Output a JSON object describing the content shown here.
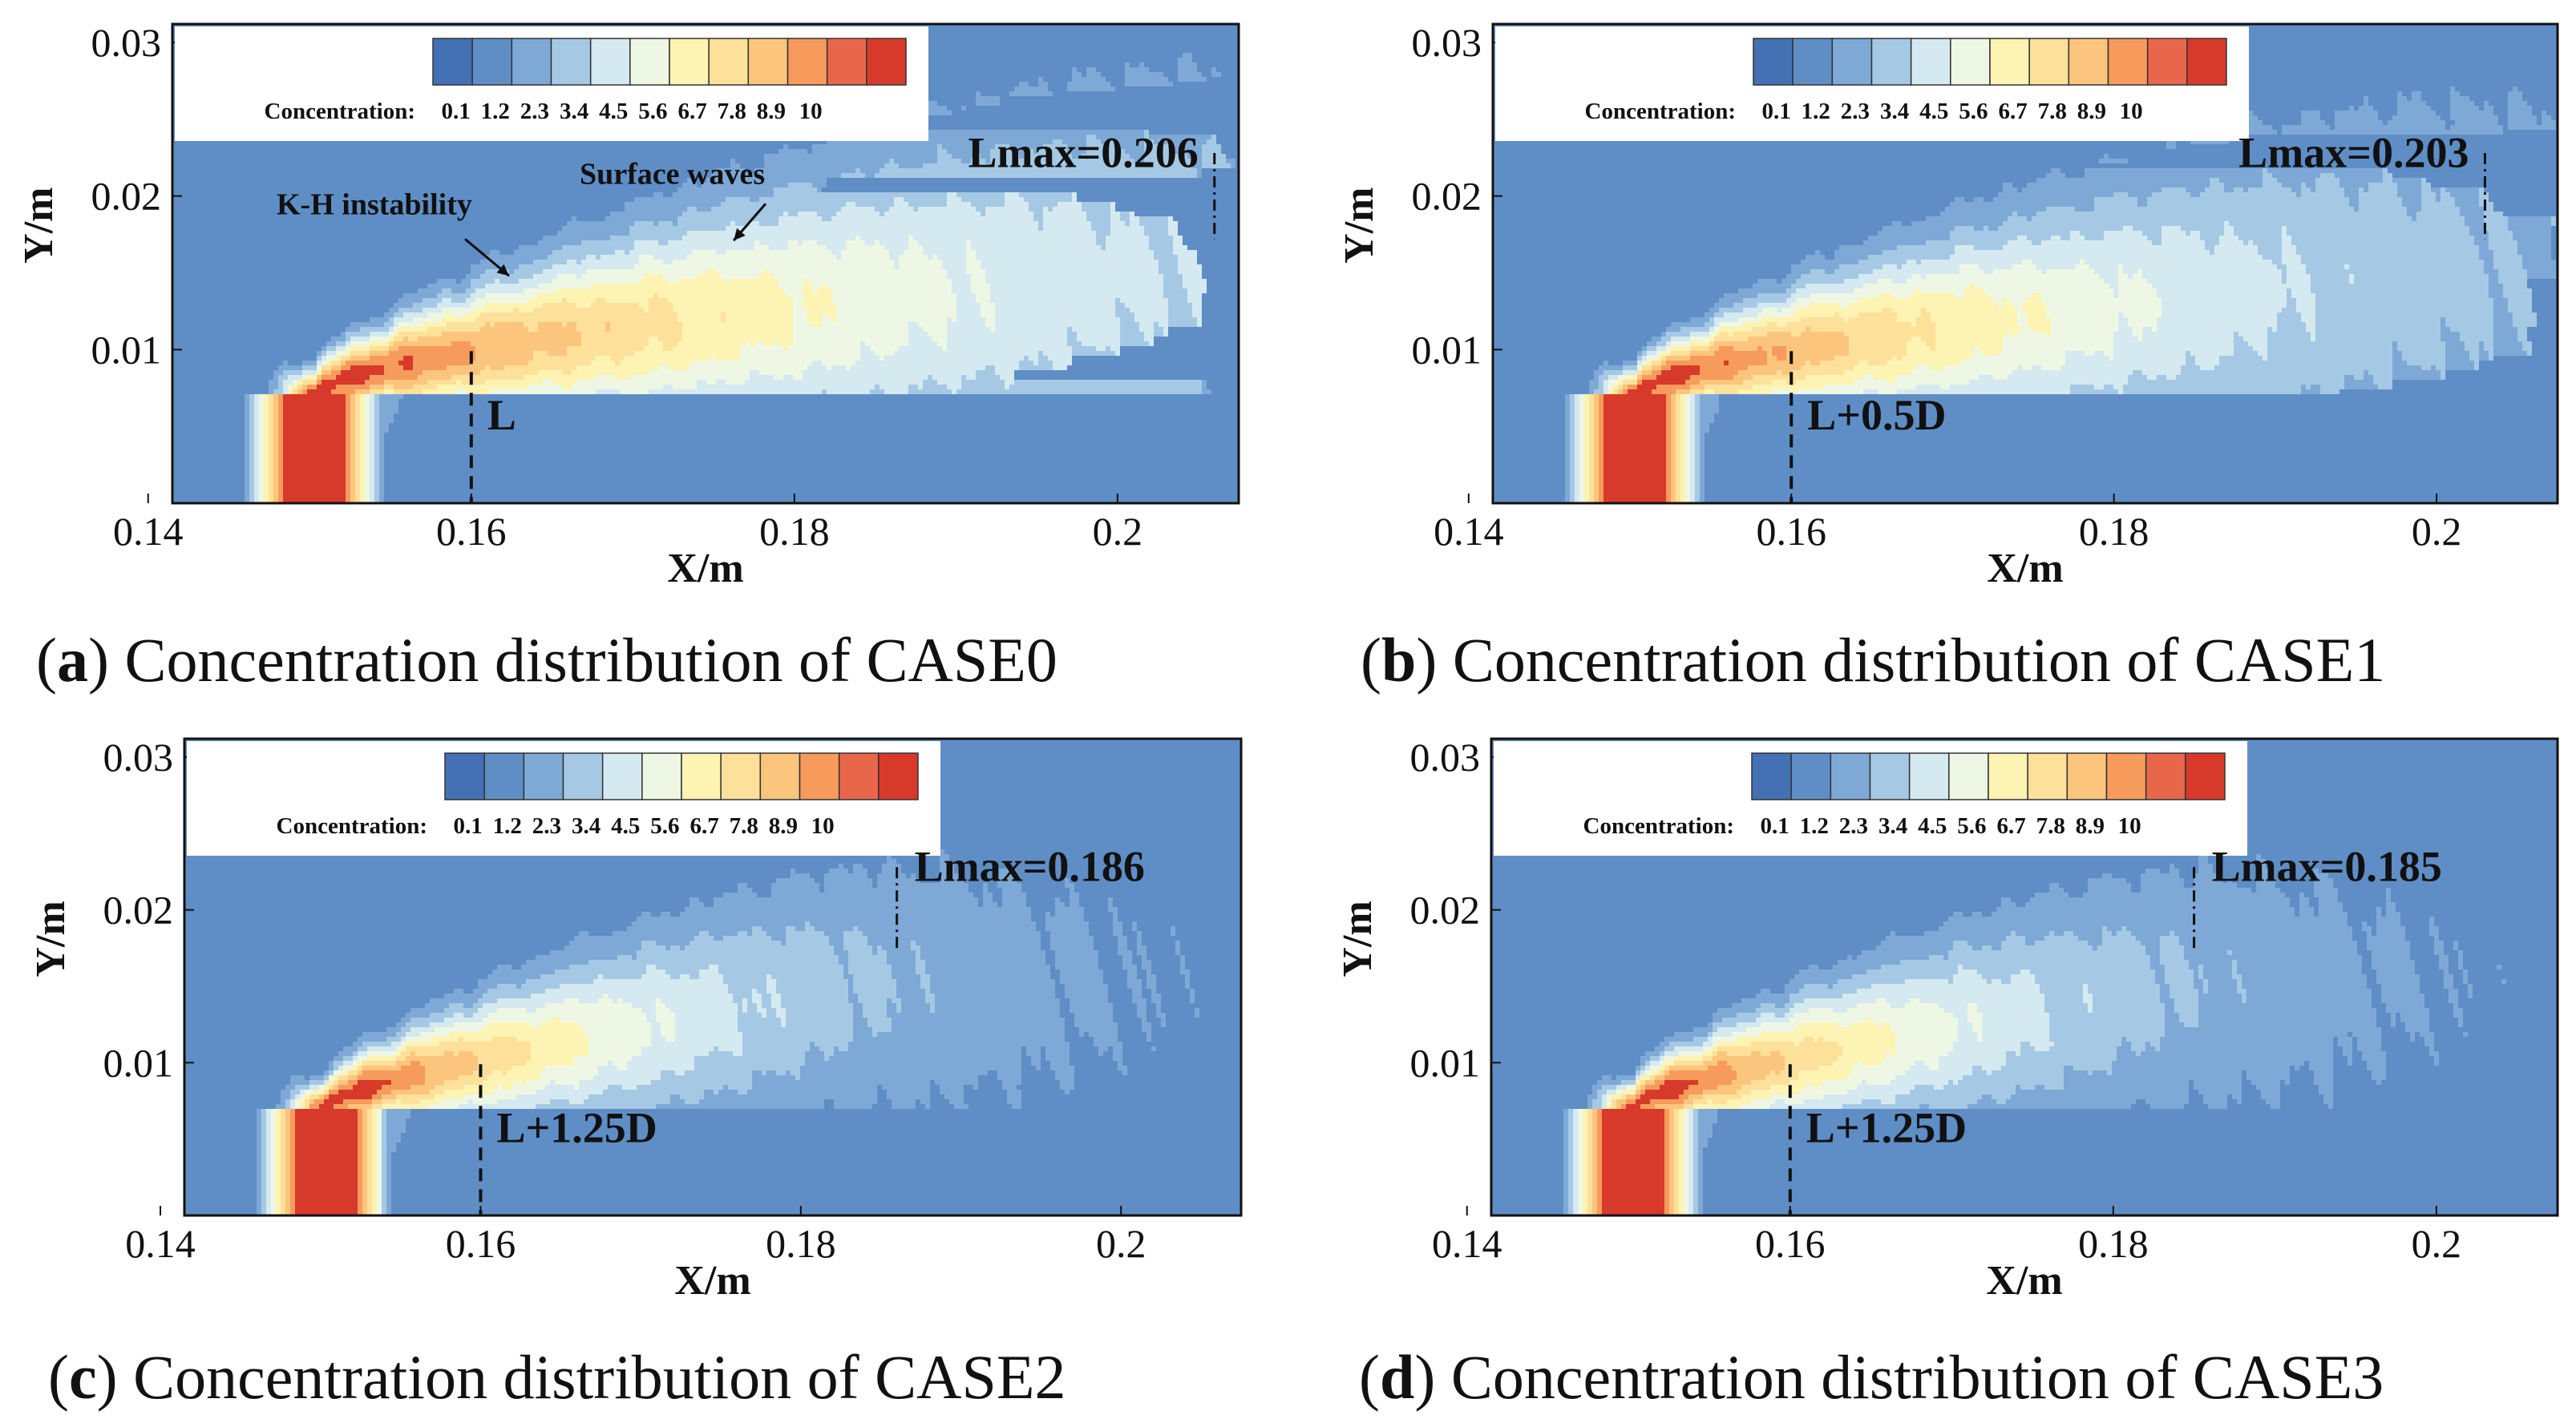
{
  "colors": {
    "levels": [
      "#4371b4",
      "#5f8ec6",
      "#7ea9d6",
      "#a5c9e4",
      "#d5e9f0",
      "#eef7e4",
      "#fdf3b2",
      "#fde09a",
      "#fcc57d",
      "#f79b5c",
      "#e8674a",
      "#d73a2b"
    ],
    "frame": "#111111"
  },
  "chart_data": [
    {
      "type": "heatmap",
      "panel": "a",
      "caption_label": "a",
      "caption_text": "Concentration distribution of CASE0",
      "xlabel": "X/m",
      "ylabel": "Y/m",
      "xlim": [
        0.1415,
        0.2075
      ],
      "ylim": [
        0.0,
        0.0312
      ],
      "xticks": [
        "0.14",
        "0.16",
        "0.18",
        "0.2"
      ],
      "yticks": [
        "0.01",
        "0.02",
        "0.03"
      ],
      "colorbar_title": "Concentration:",
      "colorbar_levels": [
        "0.1",
        "1.2",
        "2.3",
        "3.4",
        "4.5",
        "5.6",
        "6.7",
        "7.8",
        "8.9",
        "10"
      ],
      "lmax_value": 0.206,
      "lmax_label": "Lmax=0.206",
      "l_position": 0.16,
      "l_label": "L",
      "decay": 1.0,
      "rise": 0.0,
      "dip": 0.0,
      "extra_labels": [
        "K-H instability",
        "Surface waves"
      ]
    },
    {
      "type": "heatmap",
      "panel": "b",
      "caption_label": "b",
      "caption_text": "Concentration distribution of CASE1",
      "xlabel": "X/m",
      "ylabel": "Y/m",
      "xlim": [
        0.1415,
        0.2075
      ],
      "ylim": [
        0.0,
        0.0312
      ],
      "xticks": [
        "0.14",
        "0.16",
        "0.18",
        "0.2"
      ],
      "yticks": [
        "0.01",
        "0.02",
        "0.03"
      ],
      "colorbar_title": "Concentration:",
      "colorbar_levels": [
        "0.1",
        "1.2",
        "2.3",
        "3.4",
        "4.5",
        "5.6",
        "6.7",
        "7.8",
        "8.9",
        "10"
      ],
      "lmax_value": 0.203,
      "lmax_label": "Lmax=0.203",
      "l_position": 0.16,
      "l_label": "L+0.5D",
      "decay": 1.3,
      "rise": 0.0,
      "dip": 0.2,
      "extra_labels": []
    },
    {
      "type": "heatmap",
      "panel": "c",
      "caption_label": "c",
      "caption_text": "Concentration distribution of CASE2",
      "xlabel": "X/m",
      "ylabel": "Y/m",
      "xlim": [
        0.1415,
        0.2075
      ],
      "ylim": [
        0.0,
        0.0312
      ],
      "xticks": [
        "0.14",
        "0.16",
        "0.18",
        "0.2"
      ],
      "yticks": [
        "0.01",
        "0.02",
        "0.03"
      ],
      "colorbar_title": "Concentration:",
      "colorbar_levels": [
        "0.1",
        "1.2",
        "2.3",
        "3.4",
        "4.5",
        "5.6",
        "6.7",
        "7.8",
        "8.9",
        "10"
      ],
      "lmax_value": 0.186,
      "lmax_label": "Lmax=0.186",
      "l_position": 0.16,
      "l_label": "L+1.25D",
      "decay": 2.1,
      "rise": 0.18,
      "dip": 1.0,
      "extra_labels": []
    },
    {
      "type": "heatmap",
      "panel": "d",
      "caption_label": "d",
      "caption_text": "Concentration distribution of CASE3",
      "xlabel": "X/m",
      "ylabel": "Y/m",
      "xlim": [
        0.1415,
        0.2075
      ],
      "ylim": [
        0.0,
        0.0312
      ],
      "xticks": [
        "0.14",
        "0.16",
        "0.18",
        "0.2"
      ],
      "yticks": [
        "0.01",
        "0.02",
        "0.03"
      ],
      "colorbar_title": "Concentration:",
      "colorbar_levels": [
        "0.1",
        "1.2",
        "2.3",
        "3.4",
        "4.5",
        "5.6",
        "6.7",
        "7.8",
        "8.9",
        "10"
      ],
      "lmax_value": 0.185,
      "lmax_label": "Lmax=0.185",
      "l_position": 0.16,
      "l_label": "L+1.25D",
      "decay": 2.15,
      "rise": 0.18,
      "dip": 1.0,
      "extra_labels": []
    }
  ]
}
